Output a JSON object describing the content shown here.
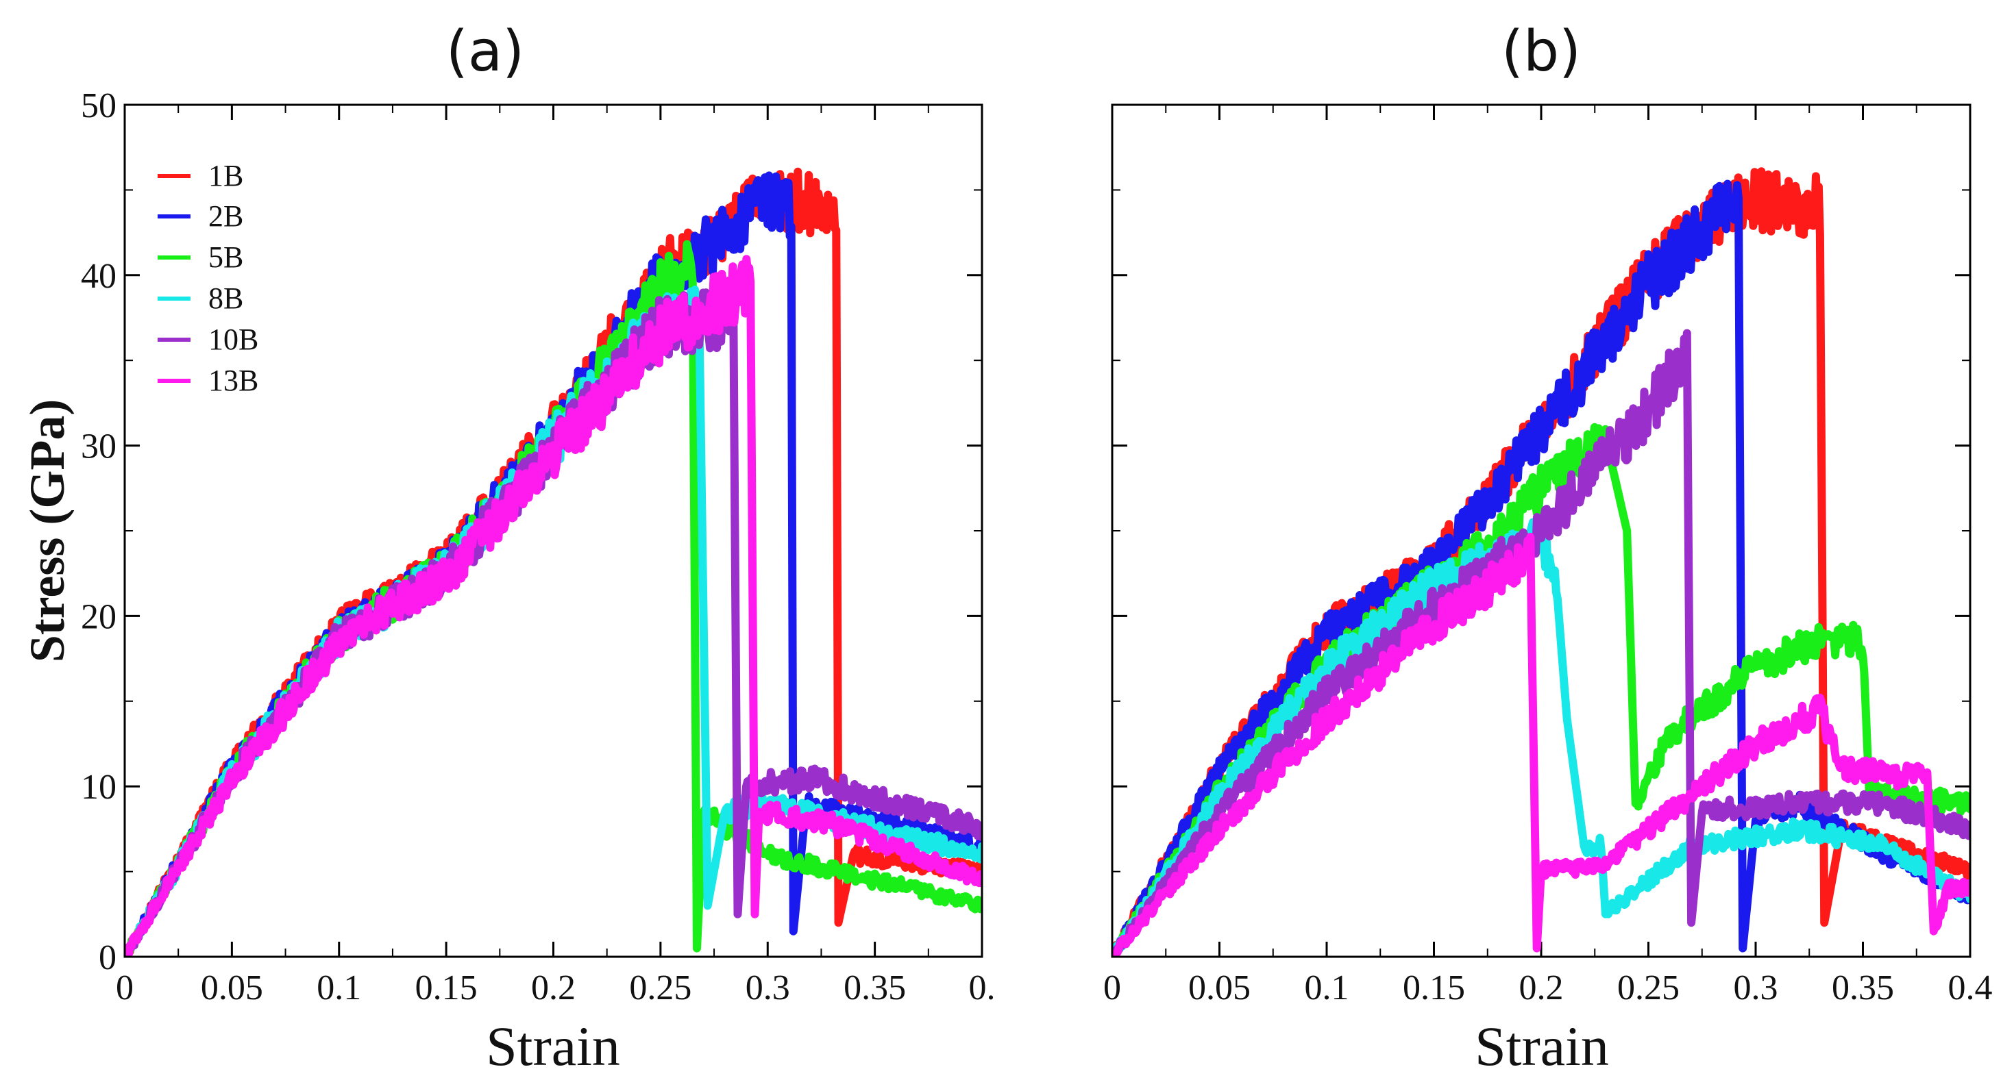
{
  "chart_data": [
    {
      "type": "line",
      "panel_label": "(a)",
      "xlabel": "Strain",
      "ylabel": "Stress (GPa)",
      "xlim": [
        0,
        0.4
      ],
      "ylim": [
        0,
        50
      ],
      "xticks": [
        "0",
        "0.05",
        "0.1",
        "0.15",
        "0.2",
        "0.25",
        "0.3",
        "0.35",
        "0."
      ],
      "yticks": [
        "0",
        "10",
        "20",
        "30",
        "40",
        "50"
      ],
      "legend": {
        "position": "top-left",
        "entries": [
          "1B",
          "2B",
          "5B",
          "8B",
          "10B",
          "13B"
        ]
      },
      "series": [
        {
          "name": "1B",
          "color": "#ff1a1a",
          "points": [
            [
              0,
              0
            ],
            [
              0.05,
              11.2
            ],
            [
              0.1,
              19.3
            ],
            [
              0.15,
              23.1
            ],
            [
              0.2,
              31.0
            ],
            [
              0.25,
              40.0
            ],
            [
              0.3,
              44.6
            ],
            [
              0.332,
              44.0
            ],
            [
              0.333,
              2.0
            ],
            [
              0.34,
              6.0
            ],
            [
              0.4,
              5.0
            ]
          ]
        },
        {
          "name": "2B",
          "color": "#1a1aee",
          "points": [
            [
              0,
              0
            ],
            [
              0.05,
              11.0
            ],
            [
              0.1,
              19.1
            ],
            [
              0.15,
              22.9
            ],
            [
              0.2,
              30.8
            ],
            [
              0.25,
              39.6
            ],
            [
              0.3,
              44.5
            ],
            [
              0.311,
              44.0
            ],
            [
              0.312,
              1.5
            ],
            [
              0.318,
              9.0
            ],
            [
              0.4,
              6.5
            ]
          ]
        },
        {
          "name": "5B",
          "color": "#19ee19",
          "points": [
            [
              0,
              0
            ],
            [
              0.05,
              10.8
            ],
            [
              0.1,
              18.9
            ],
            [
              0.15,
              22.7
            ],
            [
              0.2,
              30.5
            ],
            [
              0.25,
              39.0
            ],
            [
              0.265,
              40.5
            ],
            [
              0.267,
              0.5
            ],
            [
              0.27,
              8.5
            ],
            [
              0.3,
              6.0
            ],
            [
              0.4,
              3.0
            ]
          ]
        },
        {
          "name": "8B",
          "color": "#19e8e8",
          "points": [
            [
              0,
              0
            ],
            [
              0.05,
              10.7
            ],
            [
              0.1,
              18.8
            ],
            [
              0.15,
              22.6
            ],
            [
              0.2,
              30.2
            ],
            [
              0.25,
              37.5
            ],
            [
              0.268,
              38.0
            ],
            [
              0.272,
              3.0
            ],
            [
              0.28,
              8.5
            ],
            [
              0.3,
              9.0
            ],
            [
              0.4,
              6.0
            ]
          ]
        },
        {
          "name": "10B",
          "color": "#9a2fcc",
          "points": [
            [
              0,
              0
            ],
            [
              0.05,
              10.6
            ],
            [
              0.1,
              18.7
            ],
            [
              0.15,
              22.5
            ],
            [
              0.2,
              29.8
            ],
            [
              0.25,
              37.0
            ],
            [
              0.284,
              37.5
            ],
            [
              0.286,
              2.5
            ],
            [
              0.29,
              10.0
            ],
            [
              0.32,
              10.5
            ],
            [
              0.4,
              7.5
            ]
          ]
        },
        {
          "name": "13B",
          "color": "#ff1aee",
          "points": [
            [
              0,
              0
            ],
            [
              0.05,
              10.4
            ],
            [
              0.1,
              18.5
            ],
            [
              0.15,
              22.3
            ],
            [
              0.2,
              29.5
            ],
            [
              0.25,
              36.5
            ],
            [
              0.292,
              39.5
            ],
            [
              0.294,
              2.5
            ],
            [
              0.296,
              8.5
            ],
            [
              0.33,
              7.8
            ],
            [
              0.4,
              4.5
            ]
          ]
        }
      ]
    },
    {
      "type": "line",
      "panel_label": "(b)",
      "xlabel": "Strain",
      "ylabel": "",
      "xlim": [
        0,
        0.4
      ],
      "ylim": [
        0,
        50
      ],
      "xticks": [
        "0",
        "0.05",
        "0.1",
        "0.15",
        "0.2",
        "0.25",
        "0.3",
        "0.35",
        "0.4"
      ],
      "yticks": [],
      "series": [
        {
          "name": "1B",
          "color": "#ff1a1a",
          "points": [
            [
              0,
              0
            ],
            [
              0.05,
              11.2
            ],
            [
              0.1,
              19.3
            ],
            [
              0.15,
              23.1
            ],
            [
              0.2,
              31.0
            ],
            [
              0.25,
              40.0
            ],
            [
              0.29,
              44.5
            ],
            [
              0.33,
              44.0
            ],
            [
              0.332,
              2.0
            ],
            [
              0.34,
              7.5
            ],
            [
              0.4,
              5.0
            ]
          ]
        },
        {
          "name": "2B",
          "color": "#1a1aee",
          "points": [
            [
              0,
              0
            ],
            [
              0.05,
              11.0
            ],
            [
              0.1,
              19.1
            ],
            [
              0.15,
              22.9
            ],
            [
              0.2,
              30.8
            ],
            [
              0.25,
              39.6
            ],
            [
              0.292,
              44.5
            ],
            [
              0.294,
              0.5
            ],
            [
              0.3,
              8.0
            ],
            [
              0.32,
              9.0
            ],
            [
              0.36,
              6.0
            ],
            [
              0.4,
              3.5
            ]
          ]
        },
        {
          "name": "5B",
          "color": "#19ee19",
          "points": [
            [
              0,
              0
            ],
            [
              0.05,
              9.8
            ],
            [
              0.1,
              17.2
            ],
            [
              0.15,
              22.0
            ],
            [
              0.18,
              24.5
            ],
            [
              0.2,
              27.5
            ],
            [
              0.23,
              30.5
            ],
            [
              0.24,
              25.0
            ],
            [
              0.244,
              9.0
            ],
            [
              0.26,
              13.0
            ],
            [
              0.3,
              17.0
            ],
            [
              0.33,
              18.5
            ],
            [
              0.35,
              18.5
            ],
            [
              0.353,
              9.5
            ],
            [
              0.4,
              9.0
            ]
          ]
        },
        {
          "name": "8B",
          "color": "#19e8e8",
          "points": [
            [
              0,
              0
            ],
            [
              0.05,
              9.5
            ],
            [
              0.1,
              17.0
            ],
            [
              0.15,
              21.8
            ],
            [
              0.2,
              24.5
            ],
            [
              0.207,
              22.0
            ],
            [
              0.212,
              14.0
            ],
            [
              0.22,
              6.5
            ],
            [
              0.228,
              6.5
            ],
            [
              0.23,
              2.5
            ],
            [
              0.27,
              6.5
            ],
            [
              0.32,
              7.5
            ],
            [
              0.36,
              6.5
            ],
            [
              0.4,
              3.5
            ]
          ]
        },
        {
          "name": "10B",
          "color": "#9a2fcc",
          "points": [
            [
              0,
              0
            ],
            [
              0.05,
              8.5
            ],
            [
              0.1,
              15.5
            ],
            [
              0.15,
              20.5
            ],
            [
              0.2,
              25.0
            ],
            [
              0.25,
              32.0
            ],
            [
              0.268,
              35.5
            ],
            [
              0.27,
              2.0
            ],
            [
              0.275,
              8.5
            ],
            [
              0.32,
              9.0
            ],
            [
              0.36,
              9.0
            ],
            [
              0.4,
              7.5
            ]
          ]
        },
        {
          "name": "13B",
          "color": "#ff1aee",
          "points": [
            [
              0,
              0
            ],
            [
              0.05,
              7.5
            ],
            [
              0.1,
              14.0
            ],
            [
              0.15,
              19.5
            ],
            [
              0.195,
              23.5
            ],
            [
              0.198,
              0.5
            ],
            [
              0.2,
              5.0
            ],
            [
              0.23,
              5.5
            ],
            [
              0.27,
              9.5
            ],
            [
              0.3,
              12.5
            ],
            [
              0.33,
              14.5
            ],
            [
              0.34,
              11.0
            ],
            [
              0.38,
              10.5
            ],
            [
              0.383,
              1.5
            ],
            [
              0.39,
              4.0
            ],
            [
              0.4,
              4.0
            ]
          ]
        }
      ]
    }
  ]
}
